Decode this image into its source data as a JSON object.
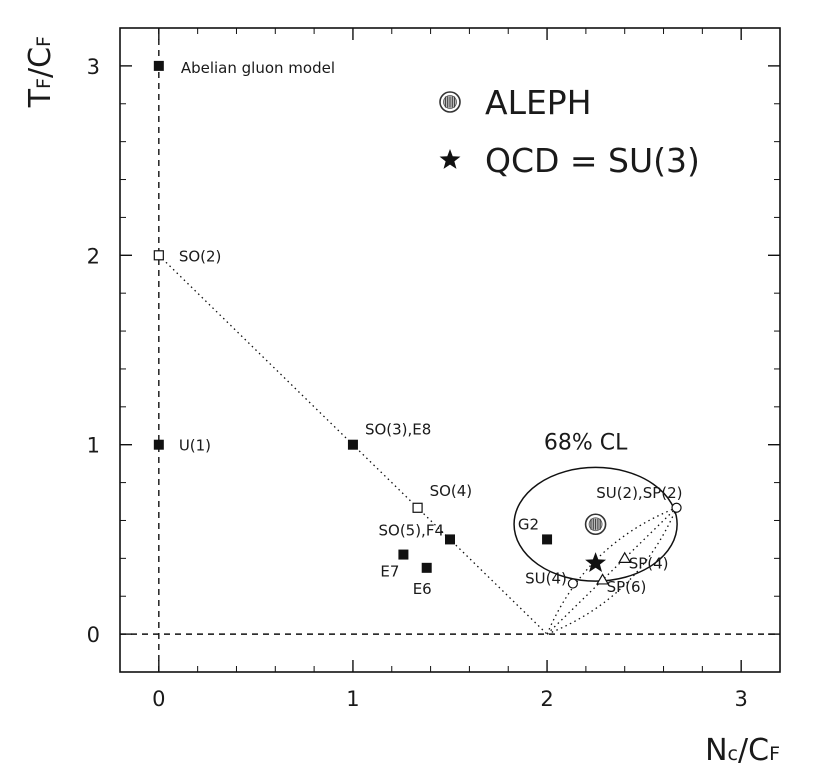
{
  "chart_data": {
    "type": "scatter",
    "x_axis": {
      "label_main": "N",
      "label_sub1": "c",
      "label_slash": "/",
      "label_main2": "C",
      "label_sub2": "F",
      "xlim": [
        -0.2,
        3.2
      ],
      "ticks": [
        0,
        1,
        2,
        3
      ]
    },
    "y_axis": {
      "label_main": "T",
      "label_sub1": "F",
      "label_slash": "/",
      "label_main2": "C",
      "label_sub2": "F",
      "ylim": [
        -0.2,
        3.2
      ],
      "ticks": [
        0,
        1,
        2,
        3
      ]
    },
    "legend": [
      {
        "marker": "aleph-circle",
        "label": "ALEPH"
      },
      {
        "marker": "star",
        "label": "QCD = SU(3)"
      }
    ],
    "points": [
      {
        "label": "Abelian gluon model",
        "x": 0,
        "y": 3,
        "marker": "filled-square"
      },
      {
        "label": "SO(2)",
        "x": 0,
        "y": 2,
        "marker": "open-square"
      },
      {
        "label": "U(1)",
        "x": 0,
        "y": 1,
        "marker": "filled-square"
      },
      {
        "label": "SO(3),E8",
        "x": 1,
        "y": 1,
        "marker": "filled-square"
      },
      {
        "label": "SO(4)",
        "x": 1.333,
        "y": 0.667,
        "marker": "open-square"
      },
      {
        "label": "SO(5),F4",
        "x": 1.5,
        "y": 0.5,
        "marker": "filled-square"
      },
      {
        "label": "E7",
        "x": 1.26,
        "y": 0.42,
        "marker": "filled-square"
      },
      {
        "label": "E6",
        "x": 1.38,
        "y": 0.35,
        "marker": "filled-square"
      },
      {
        "label": "G2",
        "x": 2,
        "y": 0.5,
        "marker": "filled-square"
      },
      {
        "label": "SU(2),SP(2)",
        "x": 2.667,
        "y": 0.667,
        "marker": "open-circle"
      },
      {
        "label": "SU(4)",
        "x": 2.133,
        "y": 0.267,
        "marker": "open-circle"
      },
      {
        "label": "SP(4)",
        "x": 2.4,
        "y": 0.4,
        "marker": "open-triangle"
      },
      {
        "label": "SP(6)",
        "x": 2.286,
        "y": 0.286,
        "marker": "open-triangle"
      },
      {
        "label": "",
        "x": 2.25,
        "y": 0.375,
        "marker": "star"
      },
      {
        "label": "",
        "x": 2.25,
        "y": 0.58,
        "marker": "aleph-circle"
      }
    ],
    "lines": [
      {
        "style": "dotted",
        "x": [
          0,
          2
        ],
        "y": [
          2,
          0
        ]
      },
      {
        "style": "dotted",
        "x": [
          2,
          2.667
        ],
        "y": [
          0,
          0.667
        ]
      },
      {
        "style": "dotted",
        "x": [
          2,
          2.667
        ],
        "y": [
          0,
          0.667
        ],
        "curve": "upper"
      },
      {
        "style": "dotted",
        "x": [
          2,
          2.667
        ],
        "y": [
          0,
          0.667
        ],
        "curve": "lower"
      }
    ],
    "reference_lines": [
      {
        "style": "dashed",
        "orientation": "horizontal",
        "value": 0
      },
      {
        "style": "dashed",
        "orientation": "vertical",
        "value": 0
      }
    ],
    "confidence_region": {
      "label": "68% CL",
      "center_x": 2.25,
      "center_y": 0.58,
      "radius_x": 0.42,
      "radius_y": 0.3
    }
  }
}
